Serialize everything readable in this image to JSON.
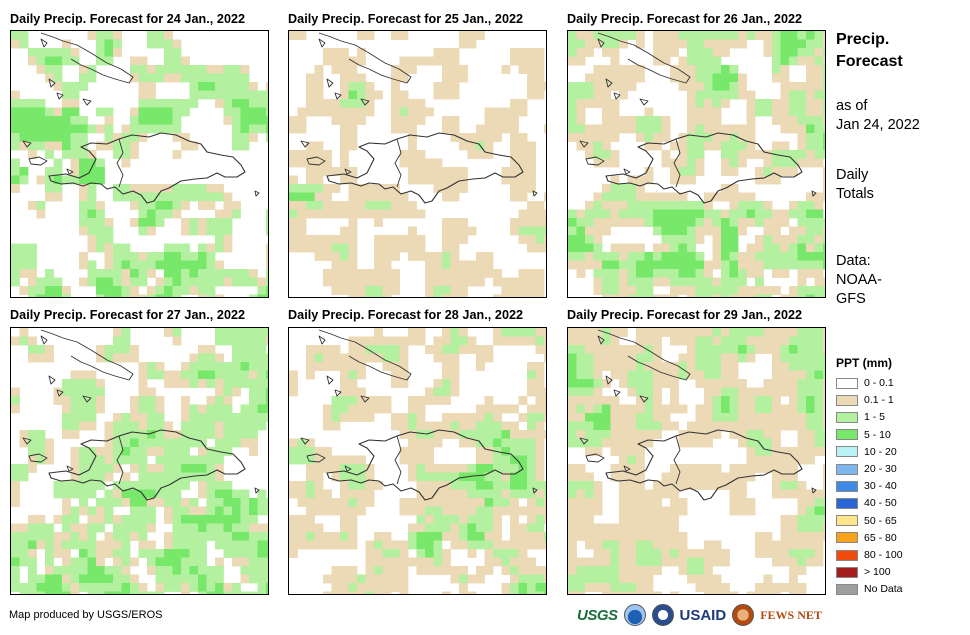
{
  "panels": [
    {
      "title": "Daily Precip. Forecast for 24 Jan., 2022"
    },
    {
      "title": "Daily Precip. Forecast for 25 Jan., 2022"
    },
    {
      "title": "Daily Precip. Forecast for 26 Jan., 2022"
    },
    {
      "title": "Daily Precip. Forecast for 27 Jan., 2022"
    },
    {
      "title": "Daily Precip. Forecast for 28 Jan., 2022"
    },
    {
      "title": "Daily Precip. Forecast for 29 Jan., 2022"
    }
  ],
  "side": {
    "title_line1": "Precip.",
    "title_line2": "Forecast",
    "asof_line1": "as of",
    "asof_line2": "Jan 24, 2022",
    "totals_line1": "Daily",
    "totals_line2": "Totals",
    "data_line1": "Data:",
    "data_line2": "NOAA-",
    "data_line3": "GFS"
  },
  "legend": {
    "title": "PPT (mm)",
    "items": [
      {
        "label": "0 - 0.1",
        "color": "#ffffff"
      },
      {
        "label": "0.1 - 1",
        "color": "#ecd9b5"
      },
      {
        "label": "1 - 5",
        "color": "#b3f0a0"
      },
      {
        "label": "5 - 10",
        "color": "#77e86a"
      },
      {
        "label": "10 - 20",
        "color": "#b8f2f4"
      },
      {
        "label": "20 - 30",
        "color": "#7eb6ee"
      },
      {
        "label": "30 - 40",
        "color": "#3f8ae4"
      },
      {
        "label": "40 - 50",
        "color": "#2a66d8"
      },
      {
        "label": "50 - 65",
        "color": "#fde68a"
      },
      {
        "label": "65 - 80",
        "color": "#f7a21b"
      },
      {
        "label": "80 - 100",
        "color": "#f04a0c"
      },
      {
        "label": "> 100",
        "color": "#a31d1d"
      },
      {
        "label": "No Data",
        "color": "#9e9e9e"
      }
    ]
  },
  "footer": {
    "credit": "Map produced by USGS/EROS",
    "logo_usgs": "USGS",
    "logo_usaid": "USAID",
    "logo_fews": "FEWS NET"
  }
}
